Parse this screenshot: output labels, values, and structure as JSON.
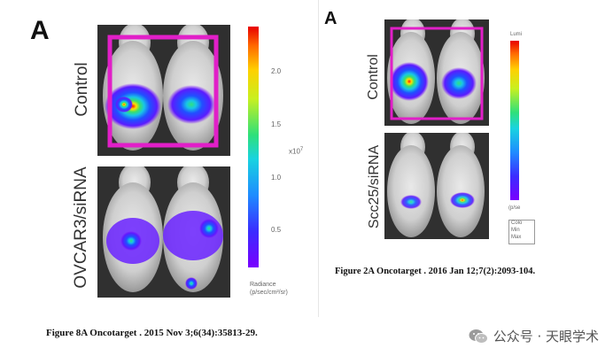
{
  "left_panel": {
    "letter": "A",
    "label_top": "Control",
    "label_bottom": "OVCAR3/siRNA",
    "colorbar": {
      "ticks": [
        "2.0",
        "1.5",
        "1.0",
        "0.5"
      ],
      "exponent": "x10",
      "exponent_power": "7",
      "title_line1": "Radiance",
      "title_line2": "(p/sec/cm²/sr)"
    },
    "caption": "Figure 8A Oncotarget . 2015 Nov 3;6(34):35813-29."
  },
  "right_panel": {
    "letter": "A",
    "label_top": "Control",
    "label_bottom": "Scc25/siRNA",
    "colorbar": {
      "title": "Lumi",
      "legend_lines": [
        "Colo",
        "Min",
        "Max"
      ],
      "subtitle": "(p/se"
    },
    "caption": "Figure 2A Oncotarget . 2016 Jan 12;7(2):2093-104."
  },
  "watermark": {
    "text": "公众号 · 天眼学术",
    "icon": "wechat-icon"
  },
  "colors": {
    "highlight_box": "#e11fc8"
  }
}
